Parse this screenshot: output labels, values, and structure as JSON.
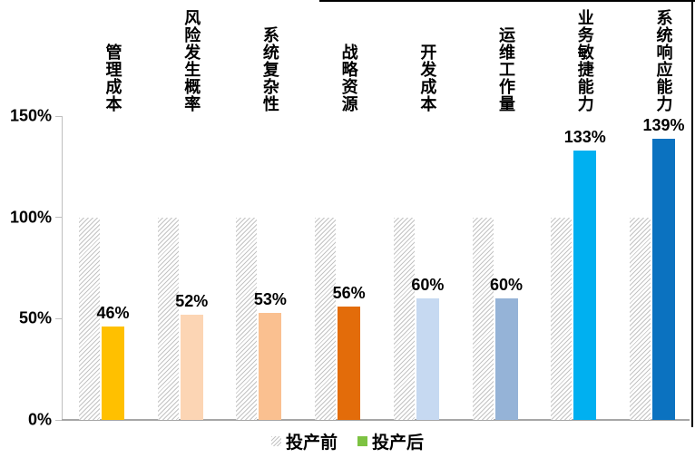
{
  "chart_data": {
    "type": "bar",
    "title": "",
    "categories": [
      "管理成本",
      "风险发生概率",
      "系统复杂性",
      "战略资源",
      "开发成本",
      "运维工作量",
      "业务敏捷能力",
      "系统响应能力"
    ],
    "series": [
      {
        "name": "投产前",
        "values": [
          100,
          100,
          100,
          100,
          100,
          100,
          100,
          100
        ],
        "fill": "hatched-gray",
        "hatch_color": "#c3c3c3"
      },
      {
        "name": "投产后",
        "values": [
          46,
          52,
          53,
          56,
          60,
          60,
          133,
          139
        ],
        "bar_colors": [
          "#FFC000",
          "#FCD5B4",
          "#FAC090",
          "#E36C0A",
          "#C6D9F1",
          "#95B3D7",
          "#00B0F0",
          "#0B72C0"
        ],
        "legend_swatch_color": "#7DC242"
      }
    ],
    "data_labels": [
      "46%",
      "52%",
      "53%",
      "56%",
      "60%",
      "60%",
      "133%",
      "139%"
    ],
    "xlabel": "",
    "ylabel": "",
    "ylim": [
      0,
      150
    ],
    "y_ticks": [
      "0%",
      "50%",
      "100%",
      "150%"
    ],
    "grid": false,
    "legend_position": "bottom-center",
    "axis_color": "#bfbfbf",
    "baseline_color": "#a6a6a6",
    "text_color": "#000000"
  }
}
